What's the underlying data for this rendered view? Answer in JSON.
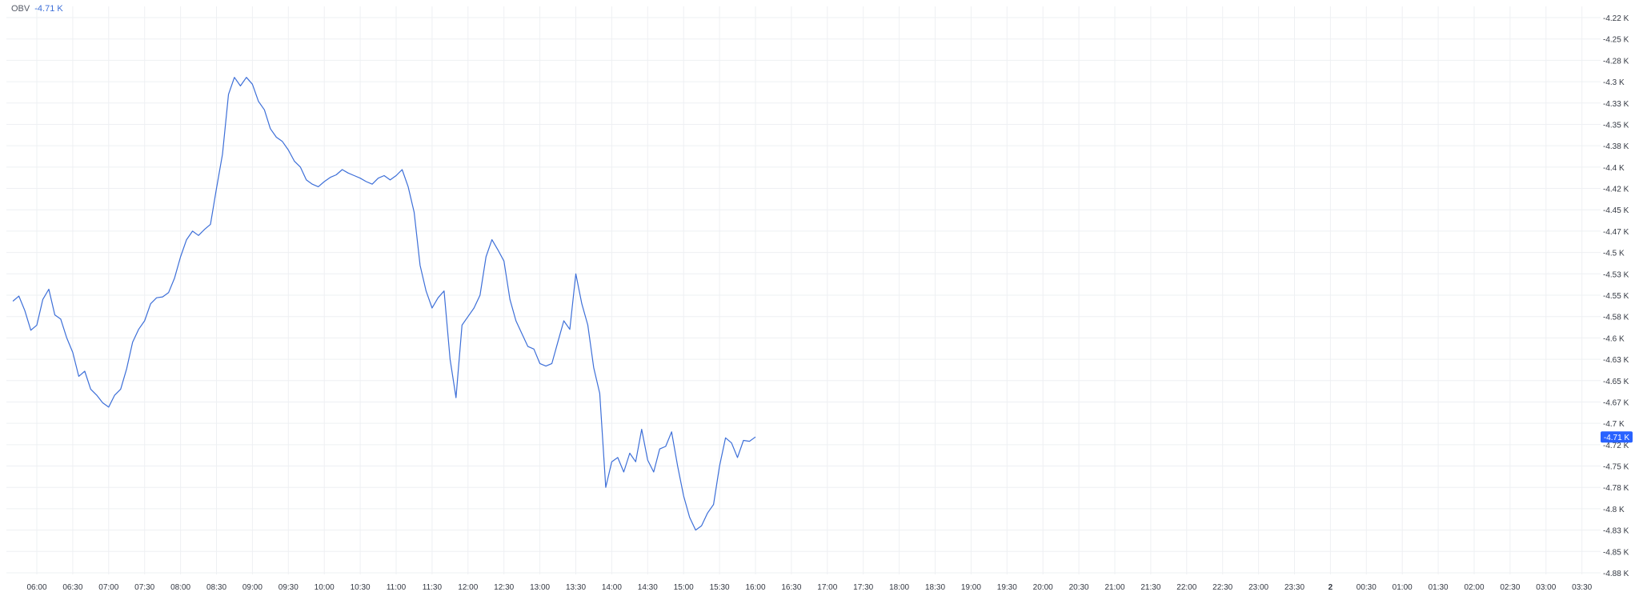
{
  "indicator": {
    "name": "OBV",
    "value_label": "-4.71 K"
  },
  "colors": {
    "line": "#3d6fd8",
    "grid": "#eef0f3",
    "axis_text": "#333842",
    "badge": "#2962ff"
  },
  "chart_data": {
    "type": "line",
    "title": "",
    "xlabel": "",
    "ylabel": "",
    "ylim": [
      -4885,
      -4210
    ],
    "grid": true,
    "y_ticks": [
      -4220,
      -4245,
      -4270,
      -4295,
      -4320,
      -4345,
      -4370,
      -4395,
      -4420,
      -4445,
      -4470,
      -4495,
      -4520,
      -4545,
      -4570,
      -4595,
      -4620,
      -4645,
      -4670,
      -4695,
      -4720,
      -4745,
      -4770,
      -4795,
      -4820,
      -4845,
      -4870
    ],
    "y_tick_labels": [
      "-4.22 K",
      "-4.25 K",
      "-4.28 K",
      "-4.3 K",
      "-4.33 K",
      "-4.35 K",
      "-4.38 K",
      "-4.4 K",
      "-4.42 K",
      "-4.45 K",
      "-4.47 K",
      "-4.5 K",
      "-4.53 K",
      "-4.55 K",
      "-4.58 K",
      "-4.6 K",
      "-4.63 K",
      "-4.65 K",
      "-4.67 K",
      "-4.7 K",
      "-4.72 K",
      "-4.75 K",
      "-4.78 K",
      "-4.8 K",
      "-4.83 K",
      "-4.85 K",
      "-4.88 K"
    ],
    "x_tick_labels": [
      "06:00",
      "06:30",
      "07:00",
      "07:30",
      "08:00",
      "08:30",
      "09:00",
      "09:30",
      "10:00",
      "10:30",
      "11:00",
      "11:30",
      "12:00",
      "12:30",
      "13:00",
      "13:30",
      "14:00",
      "14:30",
      "15:00",
      "15:30",
      "16:00",
      "16:30",
      "17:00",
      "17:30",
      "18:00",
      "18:30",
      "19:00",
      "19:30",
      "20:00",
      "20:30",
      "21:00",
      "21:30",
      "22:00",
      "22:30",
      "23:00",
      "23:30",
      "2",
      "00:30",
      "01:00",
      "01:30",
      "02:00",
      "02:30",
      "03:00",
      "03:30"
    ],
    "bold_x_labels": [
      "2"
    ],
    "last_value": -4711,
    "last_value_label": "-4.71 K",
    "series": [
      {
        "x_start": "05:40",
        "interval_minutes": 5,
        "values": [
          -4552,
          -4546,
          -4563,
          -4586,
          -4580,
          -4550,
          -4538,
          -4568,
          -4573,
          -4595,
          -4612,
          -4640,
          -4634,
          -4655,
          -4662,
          -4671,
          -4676,
          -4662,
          -4655,
          -4631,
          -4600,
          -4585,
          -4575,
          -4555,
          -4548,
          -4547,
          -4542,
          -4525,
          -4500,
          -4480,
          -4470,
          -4475,
          -4468,
          -4462,
          -4420,
          -4380,
          -4310,
          -4290,
          -4300,
          -4290,
          -4298,
          -4318,
          -4328,
          -4350,
          -4360,
          -4365,
          -4375,
          -4388,
          -4395,
          -4410,
          -4415,
          -4418,
          -4412,
          -4407,
          -4404,
          -4398,
          -4402,
          -4405,
          -4408,
          -4412,
          -4415,
          -4408,
          -4405,
          -4410,
          -4405,
          -4398,
          -4418,
          -4448,
          -4510,
          -4540,
          -4560,
          -4548,
          -4540,
          -4620,
          -4665,
          -4580,
          -4570,
          -4560,
          -4545,
          -4500,
          -4480,
          -4492,
          -4505,
          -4550,
          -4575,
          -4590,
          -4605,
          -4608,
          -4625,
          -4628,
          -4625,
          -4600,
          -4575,
          -4585,
          -4520,
          -4555,
          -4580,
          -4630,
          -4660,
          -4770,
          -4740,
          -4735,
          -4752,
          -4730,
          -4740,
          -4702,
          -4738,
          -4752,
          -4725,
          -4722,
          -4705,
          -4745,
          -4780,
          -4805,
          -4820,
          -4815,
          -4800,
          -4790,
          -4745,
          -4712,
          -4718,
          -4735,
          -4715,
          -4716,
          -4711
        ]
      }
    ]
  }
}
